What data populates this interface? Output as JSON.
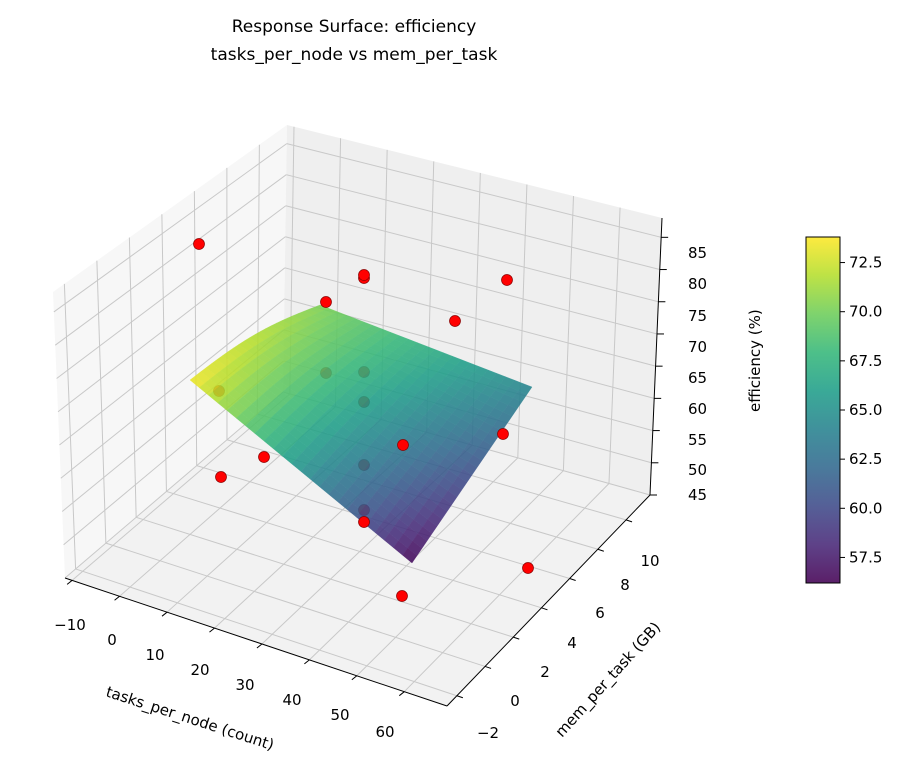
{
  "chart_data": {
    "type": "surface",
    "title_line1": "Response Surface: efficiency",
    "title_line2": "tasks_per_node vs mem_per_task",
    "xlabel": "tasks_per_node (count)",
    "ylabel": "mem_per_task (GB)",
    "zlabel": "efficiency (%)",
    "x_ticks": [
      "−10",
      "0",
      "10",
      "20",
      "30",
      "40",
      "50",
      "60"
    ],
    "y_ticks": [
      "−2",
      "0",
      "2",
      "4",
      "6",
      "8",
      "10"
    ],
    "z_ticks": [
      "45",
      "50",
      "55",
      "60",
      "65",
      "70",
      "75",
      "80",
      "85"
    ],
    "colorbar_ticks": [
      "57.5",
      "60.0",
      "62.5",
      "65.0",
      "67.5",
      "70.0",
      "72.5"
    ],
    "colorbar_range": [
      56.2,
      73.8
    ],
    "colormap": "viridis",
    "scatter_color": "#ff0000",
    "grid": true,
    "xlim": [
      -10,
      65
    ],
    "ylim": [
      -2,
      11
    ],
    "zlim": [
      45,
      88
    ]
  }
}
